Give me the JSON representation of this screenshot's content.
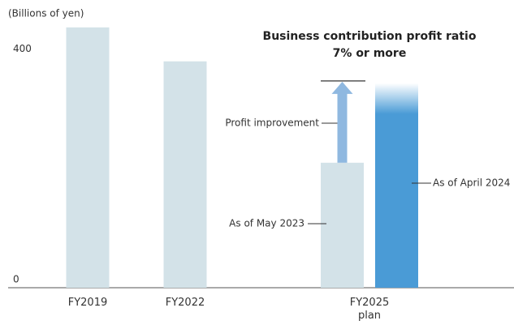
{
  "chart_data": {
    "type": "bar",
    "title": "Business contribution profit ratio",
    "subtitle": "7% or more",
    "y_axis_label": "(Billions of yen)",
    "categories": [
      "FY2019",
      "FY2022",
      "FY2025 plan"
    ],
    "series": [
      {
        "name": "As of May 2023",
        "color": "#d3e2e8",
        "values": [
          452,
          393,
          217
        ]
      },
      {
        "name": "As of April 2024",
        "color": "#4a9bd6",
        "values": [
          null,
          null,
          355
        ]
      }
    ],
    "annotation": "Profit improvement",
    "target_line": 359,
    "ylim": [
      0,
      470
    ],
    "yticks": [
      0,
      400
    ],
    "grid": false
  }
}
